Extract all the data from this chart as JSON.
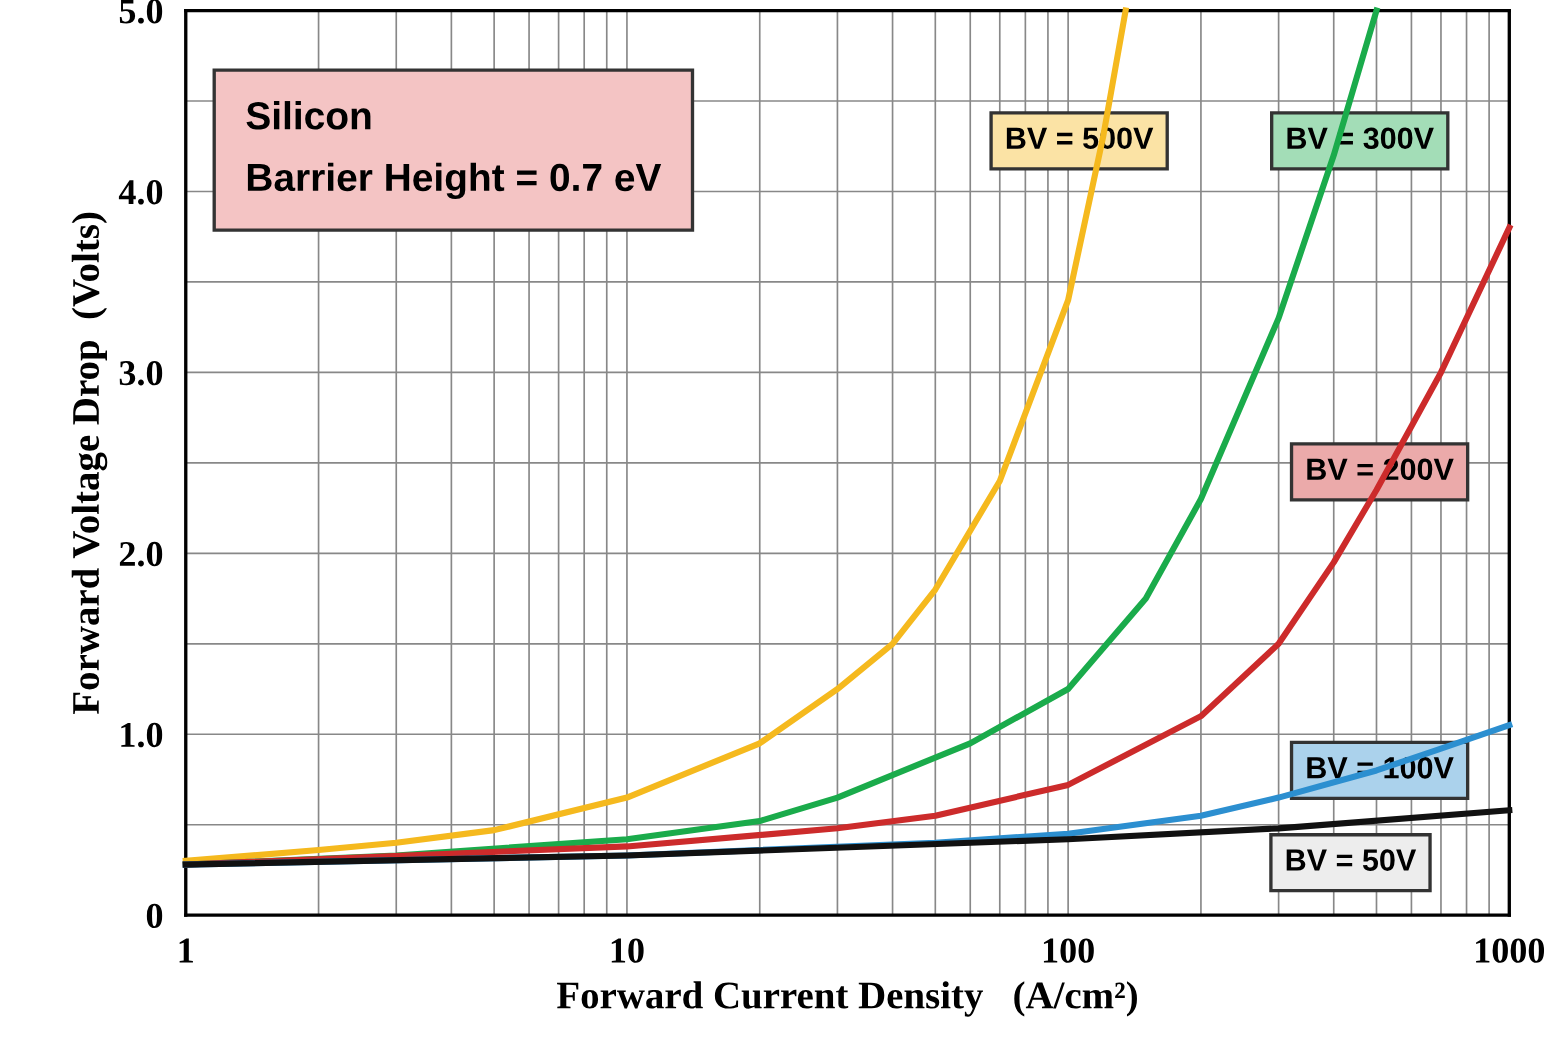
{
  "chart_data": {
    "type": "line",
    "xlabel": "Forward Current Density   (A/cm²)",
    "ylabel": "Forward Voltage Drop  (Volts)",
    "annotations": [
      "Silicon",
      "Barrier Height = 0.7 eV"
    ],
    "log": "x",
    "xlim": [
      1,
      1000
    ],
    "ylim": [
      0,
      5.0
    ],
    "xticks": [
      1,
      {
        "value": 2,
        "label": null
      },
      {
        "value": 3,
        "label": null
      },
      {
        "value": 4,
        "label": null
      },
      {
        "value": 5,
        "label": null
      },
      {
        "value": 6,
        "label": null
      },
      {
        "value": 7,
        "label": null
      },
      {
        "value": 8,
        "label": null
      },
      {
        "value": 9,
        "label": null
      },
      10,
      {
        "value": 20,
        "label": null
      },
      {
        "value": 30,
        "label": null
      },
      {
        "value": 40,
        "label": null
      },
      {
        "value": 50,
        "label": null
      },
      {
        "value": 60,
        "label": null
      },
      {
        "value": 70,
        "label": null
      },
      {
        "value": 80,
        "label": null
      },
      {
        "value": 90,
        "label": null
      },
      100,
      {
        "value": 200,
        "label": null
      },
      {
        "value": 300,
        "label": null
      },
      {
        "value": 400,
        "label": null
      },
      {
        "value": 500,
        "label": null
      },
      {
        "value": 600,
        "label": null
      },
      {
        "value": 700,
        "label": null
      },
      {
        "value": 800,
        "label": null
      },
      {
        "value": 900,
        "label": null
      },
      1000
    ],
    "yticks": [
      0,
      {
        "value": 0.5,
        "label": null
      },
      {
        "value": 1.0,
        "label": "1.0"
      },
      {
        "value": 1.5,
        "label": null
      },
      {
        "value": 2.0,
        "label": "2.0"
      },
      {
        "value": 2.5,
        "label": null
      },
      {
        "value": 3.0,
        "label": "3.0"
      },
      {
        "value": 3.5,
        "label": null
      },
      {
        "value": 4.0,
        "label": "4.0"
      },
      {
        "value": 4.5,
        "label": null
      },
      {
        "value": 5.0,
        "label": "5.0"
      }
    ],
    "grid": true,
    "marker": "none",
    "line_style": "solid",
    "series": [
      {
        "name": "BV = 500V",
        "color": "#f5b91e",
        "x": [
          1,
          2,
          3,
          5,
          10,
          20,
          30,
          40,
          50,
          70,
          100,
          120,
          135
        ],
        "values": [
          0.3,
          0.36,
          0.4,
          0.47,
          0.65,
          0.95,
          1.25,
          1.5,
          1.8,
          2.4,
          3.4,
          4.3,
          5.0
        ]
      },
      {
        "name": "BV = 300V",
        "color": "#1aab4b",
        "x": [
          1,
          3,
          10,
          20,
          30,
          60,
          100,
          150,
          200,
          300,
          400,
          500
        ],
        "values": [
          0.28,
          0.33,
          0.42,
          0.52,
          0.65,
          0.95,
          1.25,
          1.75,
          2.3,
          3.3,
          4.2,
          5.0
        ]
      },
      {
        "name": "BV = 200V",
        "color": "#cc2b2b",
        "x": [
          1,
          10,
          30,
          50,
          100,
          200,
          300,
          400,
          500,
          700,
          1000
        ],
        "values": [
          0.28,
          0.38,
          0.48,
          0.55,
          0.72,
          1.1,
          1.5,
          1.95,
          2.35,
          3.0,
          3.8
        ]
      },
      {
        "name": "BV = 100V",
        "color": "#2c8fd0",
        "x": [
          1,
          10,
          50,
          100,
          200,
          300,
          500,
          700,
          1000
        ],
        "values": [
          0.28,
          0.33,
          0.4,
          0.45,
          0.55,
          0.65,
          0.8,
          0.92,
          1.05
        ]
      },
      {
        "name": "BV = 50V",
        "color": "#111111",
        "x": [
          1,
          10,
          100,
          300,
          1000
        ],
        "values": [
          0.28,
          0.33,
          0.42,
          0.48,
          0.58
        ]
      }
    ]
  }
}
